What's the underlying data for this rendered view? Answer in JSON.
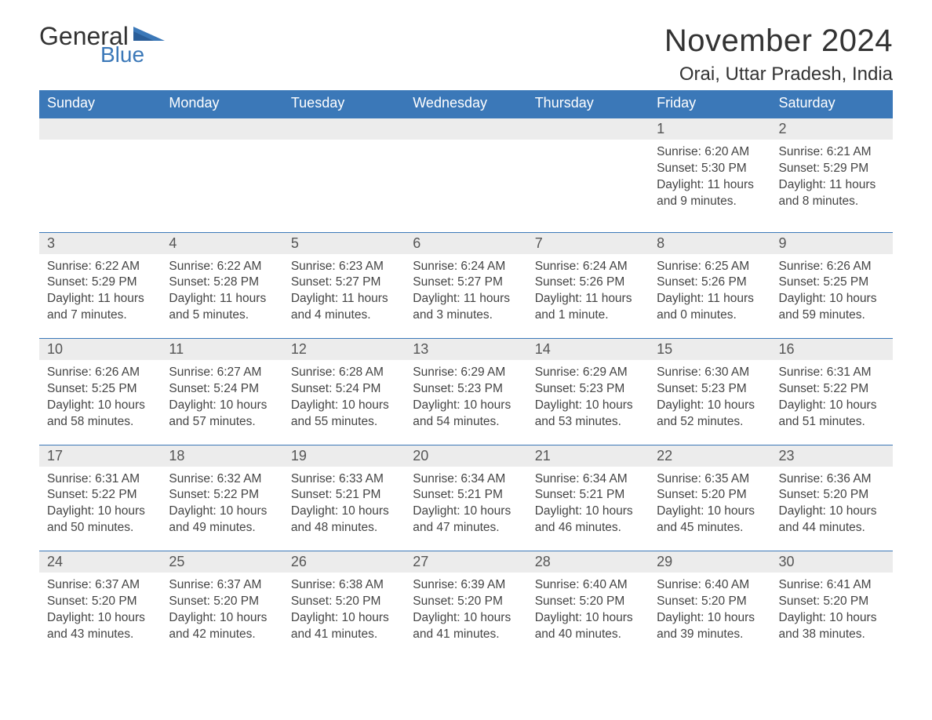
{
  "brand": {
    "name_main": "General",
    "name_sub": "Blue",
    "text_color": "#333333",
    "accent_color": "#3b78b8"
  },
  "page": {
    "month_title": "November 2024",
    "location": "Orai, Uttar Pradesh, India",
    "background_color": "#ffffff",
    "header_bg": "#3b78b8",
    "header_text_color": "#ffffff",
    "daynum_bg": "#ececec",
    "daynum_border_top": "#3b78b8",
    "body_text_color": "#444444",
    "title_fontsize_pt": 30,
    "location_fontsize_pt": 18,
    "weekday_fontsize_pt": 14,
    "daynum_fontsize_pt": 14,
    "detail_fontsize_pt": 12
  },
  "calendar": {
    "type": "table",
    "weekdays": [
      "Sunday",
      "Monday",
      "Tuesday",
      "Wednesday",
      "Thursday",
      "Friday",
      "Saturday"
    ],
    "first_weekday_index": 5,
    "days": [
      {
        "n": 1,
        "sunrise": "6:20 AM",
        "sunset": "5:30 PM",
        "daylight": "11 hours and 9 minutes."
      },
      {
        "n": 2,
        "sunrise": "6:21 AM",
        "sunset": "5:29 PM",
        "daylight": "11 hours and 8 minutes."
      },
      {
        "n": 3,
        "sunrise": "6:22 AM",
        "sunset": "5:29 PM",
        "daylight": "11 hours and 7 minutes."
      },
      {
        "n": 4,
        "sunrise": "6:22 AM",
        "sunset": "5:28 PM",
        "daylight": "11 hours and 5 minutes."
      },
      {
        "n": 5,
        "sunrise": "6:23 AM",
        "sunset": "5:27 PM",
        "daylight": "11 hours and 4 minutes."
      },
      {
        "n": 6,
        "sunrise": "6:24 AM",
        "sunset": "5:27 PM",
        "daylight": "11 hours and 3 minutes."
      },
      {
        "n": 7,
        "sunrise": "6:24 AM",
        "sunset": "5:26 PM",
        "daylight": "11 hours and 1 minute."
      },
      {
        "n": 8,
        "sunrise": "6:25 AM",
        "sunset": "5:26 PM",
        "daylight": "11 hours and 0 minutes."
      },
      {
        "n": 9,
        "sunrise": "6:26 AM",
        "sunset": "5:25 PM",
        "daylight": "10 hours and 59 minutes."
      },
      {
        "n": 10,
        "sunrise": "6:26 AM",
        "sunset": "5:25 PM",
        "daylight": "10 hours and 58 minutes."
      },
      {
        "n": 11,
        "sunrise": "6:27 AM",
        "sunset": "5:24 PM",
        "daylight": "10 hours and 57 minutes."
      },
      {
        "n": 12,
        "sunrise": "6:28 AM",
        "sunset": "5:24 PM",
        "daylight": "10 hours and 55 minutes."
      },
      {
        "n": 13,
        "sunrise": "6:29 AM",
        "sunset": "5:23 PM",
        "daylight": "10 hours and 54 minutes."
      },
      {
        "n": 14,
        "sunrise": "6:29 AM",
        "sunset": "5:23 PM",
        "daylight": "10 hours and 53 minutes."
      },
      {
        "n": 15,
        "sunrise": "6:30 AM",
        "sunset": "5:23 PM",
        "daylight": "10 hours and 52 minutes."
      },
      {
        "n": 16,
        "sunrise": "6:31 AM",
        "sunset": "5:22 PM",
        "daylight": "10 hours and 51 minutes."
      },
      {
        "n": 17,
        "sunrise": "6:31 AM",
        "sunset": "5:22 PM",
        "daylight": "10 hours and 50 minutes."
      },
      {
        "n": 18,
        "sunrise": "6:32 AM",
        "sunset": "5:22 PM",
        "daylight": "10 hours and 49 minutes."
      },
      {
        "n": 19,
        "sunrise": "6:33 AM",
        "sunset": "5:21 PM",
        "daylight": "10 hours and 48 minutes."
      },
      {
        "n": 20,
        "sunrise": "6:34 AM",
        "sunset": "5:21 PM",
        "daylight": "10 hours and 47 minutes."
      },
      {
        "n": 21,
        "sunrise": "6:34 AM",
        "sunset": "5:21 PM",
        "daylight": "10 hours and 46 minutes."
      },
      {
        "n": 22,
        "sunrise": "6:35 AM",
        "sunset": "5:20 PM",
        "daylight": "10 hours and 45 minutes."
      },
      {
        "n": 23,
        "sunrise": "6:36 AM",
        "sunset": "5:20 PM",
        "daylight": "10 hours and 44 minutes."
      },
      {
        "n": 24,
        "sunrise": "6:37 AM",
        "sunset": "5:20 PM",
        "daylight": "10 hours and 43 minutes."
      },
      {
        "n": 25,
        "sunrise": "6:37 AM",
        "sunset": "5:20 PM",
        "daylight": "10 hours and 42 minutes."
      },
      {
        "n": 26,
        "sunrise": "6:38 AM",
        "sunset": "5:20 PM",
        "daylight": "10 hours and 41 minutes."
      },
      {
        "n": 27,
        "sunrise": "6:39 AM",
        "sunset": "5:20 PM",
        "daylight": "10 hours and 41 minutes."
      },
      {
        "n": 28,
        "sunrise": "6:40 AM",
        "sunset": "5:20 PM",
        "daylight": "10 hours and 40 minutes."
      },
      {
        "n": 29,
        "sunrise": "6:40 AM",
        "sunset": "5:20 PM",
        "daylight": "10 hours and 39 minutes."
      },
      {
        "n": 30,
        "sunrise": "6:41 AM",
        "sunset": "5:20 PM",
        "daylight": "10 hours and 38 minutes."
      }
    ],
    "labels": {
      "sunrise": "Sunrise",
      "sunset": "Sunset",
      "daylight": "Daylight"
    }
  }
}
